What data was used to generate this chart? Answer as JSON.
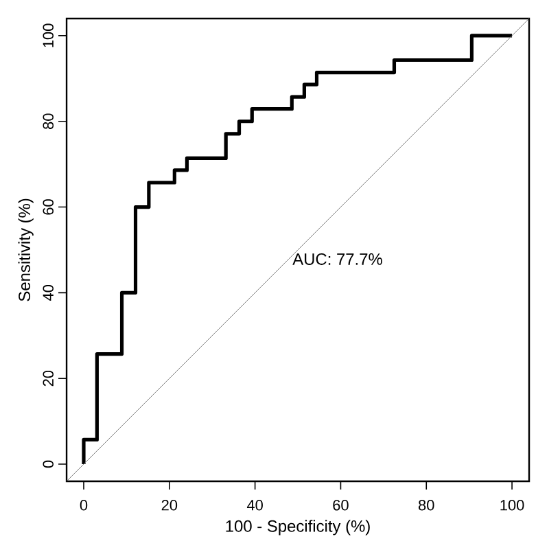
{
  "chart_data": {
    "type": "step",
    "xlabel": "100 - Specificity (%)",
    "ylabel": "Sensitivity (%)",
    "xlim": [
      -4,
      104
    ],
    "ylim": [
      -4,
      104
    ],
    "xticks": [
      0,
      20,
      40,
      60,
      80,
      100
    ],
    "yticks": [
      0,
      20,
      40,
      60,
      80,
      100
    ],
    "grid": false,
    "marker": "none",
    "series": [
      {
        "color": "#000000",
        "x": [
          0,
          0,
          3.1,
          8.9,
          12.1,
          15.2,
          21.2,
          24.1,
          33.2,
          36.3,
          39.3,
          48.6,
          51.5,
          54.4,
          72.5,
          90.6,
          100
        ],
        "values": [
          0,
          5.7,
          25.7,
          40,
          60,
          65.7,
          68.6,
          71.4,
          77.1,
          80,
          82.9,
          85.7,
          88.6,
          91.4,
          94.3,
          100,
          100
        ]
      },
      {
        "type": "line",
        "color": "#808080",
        "x": [
          -4,
          104
        ],
        "values": [
          -4,
          104
        ]
      }
    ],
    "annotations": [
      "AUC: 77.7%"
    ]
  }
}
